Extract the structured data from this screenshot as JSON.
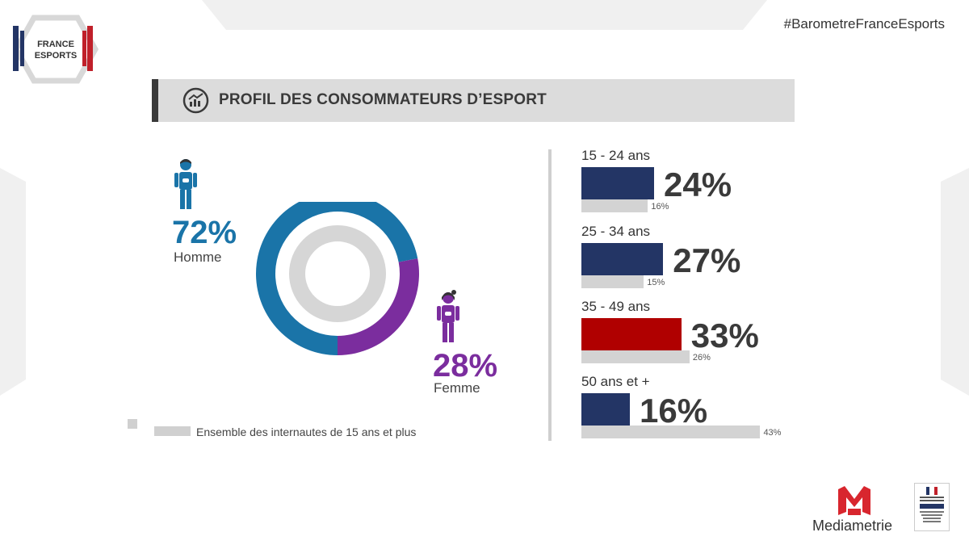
{
  "hashtag": "#BarometreFranceEsports",
  "logo": {
    "line1": "FRANCE",
    "line2": "ESPORTS"
  },
  "title": "PROFIL DES CONSOMMATEURS D’ESPORT",
  "gender": {
    "male": {
      "pct": "72%",
      "label": "Homme",
      "color": "#1a74a8"
    },
    "female": {
      "pct": "28%",
      "label": "Femme",
      "color": "#7b2d9e"
    }
  },
  "legend_text": "Ensemble des internautes de 15 ans et plus",
  "brand": "Mediametrie",
  "colors": {
    "navy": "#233565",
    "red": "#b00000",
    "grey": "#d3d3d3",
    "blue": "#1a74a8",
    "purple": "#7b2d9e"
  },
  "chart_data": [
    {
      "type": "pie",
      "labels": [
        "Homme",
        "Femme"
      ],
      "values": [
        72,
        28
      ],
      "inner_ring": "Ensemble des internautes de 15 ans et plus"
    },
    {
      "type": "bar",
      "orientation": "horizontal",
      "categories": [
        "15 - 24 ans",
        "25 - 34 ans",
        "35 - 49 ans",
        "50 ans et +"
      ],
      "series": [
        {
          "values": [
            24,
            27,
            33,
            16
          ],
          "labels": [
            "24%",
            "27%",
            "33%",
            "16%"
          ]
        },
        {
          "name": "Ensemble des internautes de 15 ans et plus",
          "values": [
            16,
            15,
            26,
            43
          ],
          "labels": [
            "16%",
            "15%",
            "26%",
            "43%"
          ]
        }
      ],
      "highlight": "35 - 49 ans"
    }
  ]
}
